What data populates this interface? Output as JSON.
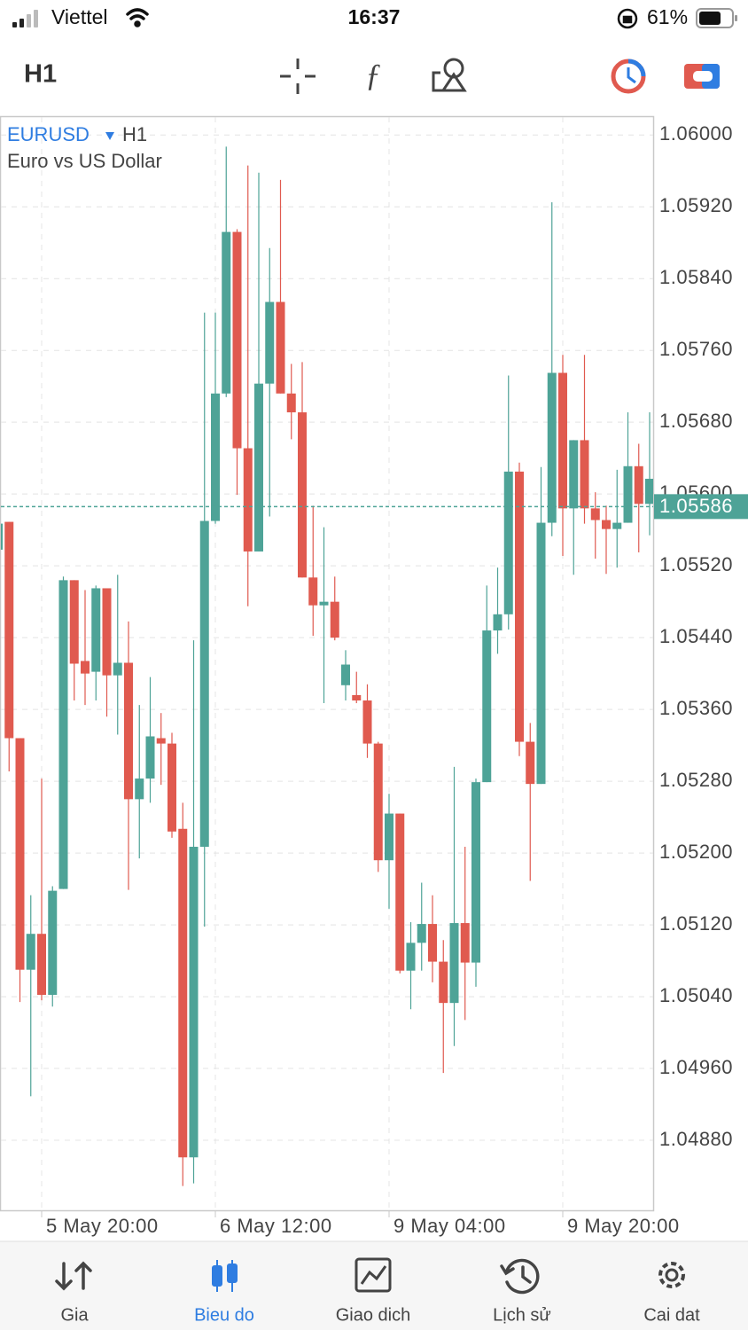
{
  "status_bar": {
    "carrier": "Viettel",
    "time": "16:37",
    "battery": "61%"
  },
  "toolbar": {
    "timeframe": "H1"
  },
  "chart_data": {
    "type": "candlestick",
    "symbol": "EURUSD",
    "timeframe": "H1",
    "description": "Euro vs US Dollar",
    "up_color": "#4ea397",
    "down_color": "#e05a4f",
    "grid": true,
    "categories": [
      null,
      null,
      null,
      null,
      "5 May 20:00",
      null,
      null,
      null,
      null,
      null,
      null,
      null,
      null,
      null,
      null,
      null,
      null,
      null,
      null,
      null,
      "6 May 12:00",
      null,
      null,
      null,
      null,
      null,
      null,
      null,
      null,
      null,
      null,
      null,
      null,
      null,
      null,
      null,
      "9 May 04:00",
      null,
      null,
      null,
      null,
      null,
      null,
      null,
      null,
      null,
      null,
      null,
      null,
      null,
      null,
      null,
      "9 May 20:00",
      null,
      null,
      null,
      null,
      null,
      null,
      null,
      null
    ],
    "open": [
      1.05538,
      1.05569,
      1.05328,
      1.0507,
      1.0511,
      1.05042,
      1.0516,
      1.05504,
      1.05414,
      1.05402,
      1.05495,
      1.05398,
      1.05412,
      1.0526,
      1.05283,
      1.05328,
      1.05322,
      1.05227,
      1.04861,
      1.05207,
      1.0557,
      1.05712,
      1.05892,
      1.05651,
      1.05536,
      1.05723,
      1.05814,
      1.05712,
      1.05691,
      1.05507,
      1.05476,
      1.0548,
      1.05387,
      1.05376,
      1.0537,
      1.05322,
      1.05192,
      1.05244,
      1.05069,
      1.051,
      1.05121,
      1.05079,
      1.05033,
      1.05122,
      1.05078,
      1.05279,
      1.05448,
      1.05466,
      1.05625,
      1.05324,
      1.05277,
      1.05568,
      1.05735,
      1.05584,
      1.0566,
      1.05584,
      1.05571,
      1.05561,
      1.05568,
      1.05631,
      1.05589
    ],
    "high": [
      1.05569,
      1.05569,
      1.05328,
      1.05153,
      1.05283,
      1.05163,
      1.05508,
      1.05504,
      1.05493,
      1.05498,
      1.05495,
      1.0551,
      1.05458,
      1.05365,
      1.05396,
      1.05356,
      1.05334,
      1.05256,
      1.05437,
      1.05802,
      1.05802,
      1.05987,
      1.05895,
      1.05966,
      1.05958,
      1.05874,
      1.0595,
      1.05745,
      1.05747,
      1.05587,
      1.05563,
      1.05508,
      1.05426,
      1.05402,
      1.05388,
      1.05324,
      1.05266,
      1.05244,
      1.05123,
      1.05167,
      1.05153,
      1.05103,
      1.05296,
      1.05207,
      1.05283,
      1.05498,
      1.05518,
      1.05732,
      1.05635,
      1.05345,
      1.0563,
      1.05925,
      1.05755,
      1.0566,
      1.05755,
      1.05602,
      1.05587,
      1.05627,
      1.05691,
      1.05656,
      1.05691
    ],
    "low": [
      1.05538,
      1.05291,
      1.05034,
      1.04929,
      1.05036,
      1.05029,
      1.0516,
      1.0537,
      1.05365,
      1.0537,
      1.05352,
      1.05332,
      1.05159,
      1.05194,
      1.05256,
      1.05276,
      1.05217,
      1.04829,
      1.04832,
      1.05118,
      1.05567,
      1.05708,
      1.05599,
      1.05475,
      1.05536,
      1.05575,
      1.05712,
      1.05661,
      1.05507,
      1.05442,
      1.05367,
      1.05437,
      1.0537,
      1.05367,
      1.05306,
      1.05179,
      1.05138,
      1.05066,
      1.05026,
      1.05069,
      1.05056,
      1.04955,
      1.04985,
      1.05014,
      1.05051,
      1.05279,
      1.05422,
      1.05449,
      1.05308,
      1.05169,
      1.05277,
      1.05553,
      1.05531,
      1.0551,
      1.05567,
      1.05528,
      1.05511,
      1.05518,
      1.05568,
      1.05535,
      1.05554
    ],
    "close": [
      1.05567,
      1.05328,
      1.0507,
      1.0511,
      1.05042,
      1.05158,
      1.05504,
      1.05411,
      1.054,
      1.05495,
      1.05398,
      1.05412,
      1.0526,
      1.05283,
      1.0533,
      1.05322,
      1.05224,
      1.04861,
      1.05207,
      1.0557,
      1.05712,
      1.05892,
      1.05651,
      1.05536,
      1.05723,
      1.05814,
      1.05712,
      1.05691,
      1.05507,
      1.05476,
      1.0548,
      1.0544,
      1.0541,
      1.0537,
      1.05322,
      1.05192,
      1.05244,
      1.05069,
      1.051,
      1.05121,
      1.05079,
      1.05033,
      1.05122,
      1.05078,
      1.05279,
      1.05448,
      1.05466,
      1.05625,
      1.05324,
      1.05277,
      1.05568,
      1.05735,
      1.05584,
      1.0566,
      1.05584,
      1.05571,
      1.05561,
      1.05568,
      1.05631,
      1.05589,
      1.05617
    ],
    "last_price": 1.05586,
    "ylim": [
      1.04802,
      1.0602
    ],
    "yticks": [
      {
        "value": 1.06,
        "label": "1.06000"
      },
      {
        "value": 1.0592,
        "label": "1.05920"
      },
      {
        "value": 1.0584,
        "label": "1.05840"
      },
      {
        "value": 1.0576,
        "label": "1.05760"
      },
      {
        "value": 1.0568,
        "label": "1.05680"
      },
      {
        "value": 1.056,
        "label": "1.05600"
      },
      {
        "value": 1.0552,
        "label": "1.05520"
      },
      {
        "value": 1.0544,
        "label": "1.05440"
      },
      {
        "value": 1.0536,
        "label": "1.05360"
      },
      {
        "value": 1.0528,
        "label": "1.05280"
      },
      {
        "value": 1.052,
        "label": "1.05200"
      },
      {
        "value": 1.0512,
        "label": "1.05120"
      },
      {
        "value": 1.0504,
        "label": "1.05040"
      },
      {
        "value": 1.0496,
        "label": "1.04960"
      },
      {
        "value": 1.0488,
        "label": "1.04880"
      }
    ]
  },
  "tab_bar": {
    "tabs": [
      "Gia",
      "Bieu do",
      "Giao dich",
      "Lịch sử",
      "Cai dat"
    ],
    "active": 1
  }
}
